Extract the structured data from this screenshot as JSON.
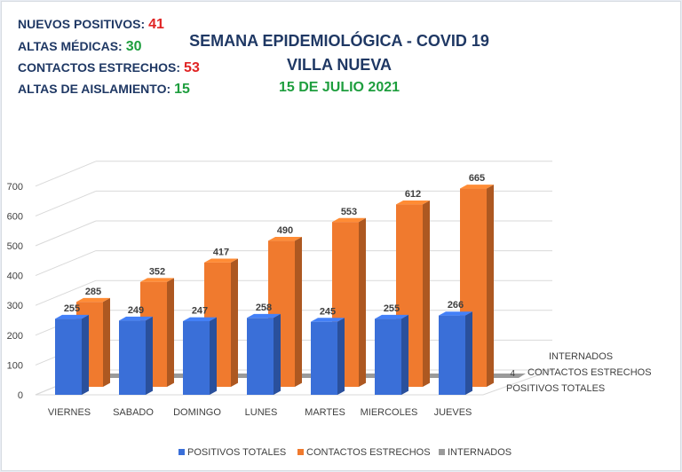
{
  "stats": [
    {
      "label": "NUEVOS POSITIVOS:",
      "value": "41",
      "color": "#e02424"
    },
    {
      "label": "ALTAS MÉDICAS:",
      "value": "30",
      "color": "#1e9e3e"
    },
    {
      "label": "CONTACTOS ESTRECHOS:",
      "value": "53",
      "color": "#e02424"
    },
    {
      "label": "ALTAS DE AISLAMIENTO:",
      "value": "15",
      "color": "#1e9e3e"
    }
  ],
  "header": {
    "title": "SEMANA EPIDEMIOLÓGICA - COVID 19",
    "subtitle": "VILLA NUEVA",
    "date": "15 DE JULIO 2021"
  },
  "chart_data": {
    "type": "bar",
    "categories": [
      "VIERNES",
      "SABADO",
      "DOMINGO",
      "LUNES",
      "MARTES",
      "MIERCOLES",
      "JUEVES"
    ],
    "series": [
      {
        "name": "POSITIVOS TOTALES",
        "values": [
          255,
          249,
          247,
          258,
          245,
          255,
          266
        ],
        "color": "#3a6fd8"
      },
      {
        "name": "CONTACTOS ESTRECHOS",
        "values": [
          285,
          352,
          417,
          490,
          553,
          612,
          665
        ],
        "color": "#f07a2e"
      },
      {
        "name": "INTERNADOS",
        "values": [
          8,
          8,
          8,
          7,
          7,
          6,
          4
        ],
        "color": "#9a9a9a"
      }
    ],
    "depth_labels": [
      "INTERNADOS",
      "CONTACTOS ESTRECHOS",
      "POSITIVOS TOTALES"
    ],
    "yticks": [
      0,
      100,
      200,
      300,
      400,
      500,
      600,
      700
    ],
    "ylim": [
      0,
      700
    ],
    "grid": true,
    "legend_position": "bottom",
    "view": "3d-column"
  }
}
